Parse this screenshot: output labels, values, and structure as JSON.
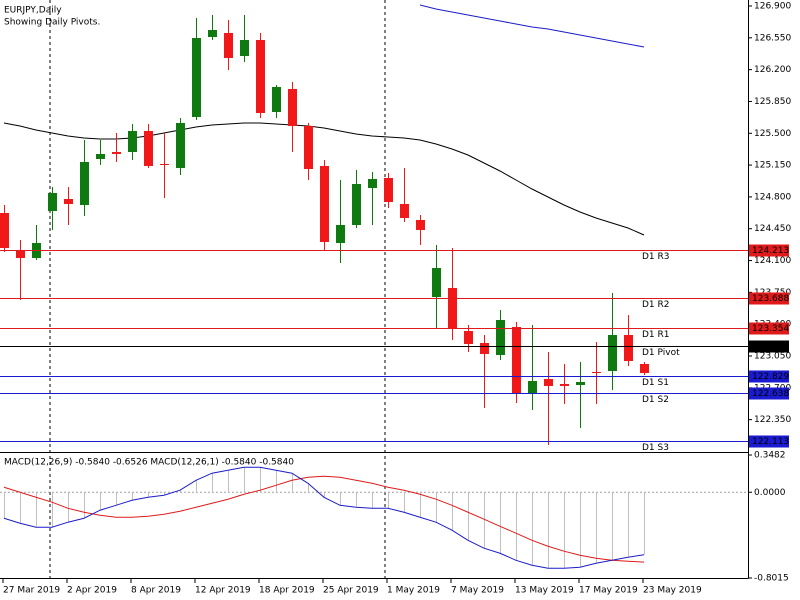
{
  "chart_data": [
    {
      "type": "candlestick",
      "title": "EURJPY,Daily",
      "subtitle": "Showing Daily Pivots.",
      "categories": [
        "27 Mar 2019",
        null,
        null,
        null,
        "2 Apr 2019",
        null,
        null,
        null,
        "8 Apr 2019",
        null,
        null,
        null,
        "12 Apr 2019",
        null,
        null,
        null,
        "18 Apr 2019",
        null,
        null,
        null,
        "25 Apr 2019",
        null,
        null,
        null,
        "1 May 2019",
        null,
        null,
        null,
        "7 May 2019",
        null,
        null,
        null,
        "13 May 2019",
        null,
        null,
        null,
        "17 May 2019",
        null,
        null,
        null,
        "23 May 2019"
      ],
      "open": [
        124.623,
        124.216,
        124.128,
        124.645,
        124.777,
        124.711,
        125.217,
        125.294,
        125.294,
        125.525,
        125.162,
        125.118,
        125.679,
        126.559,
        126.603,
        126.35,
        126.526,
        125.734,
        125.987,
        125.58,
        125.14,
        124.293,
        124.491,
        124.898,
        125.008,
        124.722,
        124.546,
        123.699,
        123.798,
        123.325,
        123.193,
        123.061,
        123.369,
        122.632,
        122.797,
        122.742,
        122.731,
        122.874,
        122.885,
        123.281,
        122.962
      ],
      "high": [
        124.711,
        124.326,
        124.491,
        124.909,
        124.909,
        125.426,
        125.426,
        125.503,
        125.602,
        125.602,
        125.503,
        125.668,
        126.768,
        126.801,
        126.746,
        126.801,
        126.603,
        126.031,
        126.064,
        125.613,
        125.206,
        124.986,
        125.096,
        125.074,
        125.063,
        125.118,
        124.601,
        124.271,
        124.238,
        123.391,
        123.281,
        123.556,
        123.424,
        123.391,
        123.094,
        122.962,
        122.984,
        123.204,
        123.743,
        123.501,
        122.984
      ],
      "low": [
        124.194,
        123.666,
        124.106,
        124.436,
        124.491,
        124.59,
        125.151,
        125.184,
        125.206,
        125.118,
        124.788,
        125.041,
        125.646,
        126.526,
        126.196,
        126.284,
        125.668,
        125.668,
        125.294,
        124.986,
        124.216,
        124.073,
        124.458,
        124.491,
        124.678,
        124.524,
        124.271,
        123.358,
        123.226,
        123.094,
        122.478,
        123.006,
        122.533,
        122.456,
        122.071,
        122.522,
        122.258,
        122.522,
        122.676,
        122.94,
        122.841
      ],
      "close": [
        124.238,
        124.128,
        124.293,
        124.843,
        124.722,
        125.184,
        125.272,
        125.272,
        125.525,
        125.14,
        125.151,
        125.613,
        126.548,
        126.636,
        126.328,
        126.526,
        125.723,
        126.009,
        125.58,
        125.107,
        124.304,
        124.491,
        124.942,
        124.997,
        124.744,
        124.568,
        124.436,
        124.018,
        123.358,
        123.182,
        123.072,
        123.446,
        122.643,
        122.775,
        122.72,
        122.72,
        122.764,
        122.863,
        123.281,
        122.995,
        122.863
      ],
      "up_color": "#0f7a0f",
      "down_color": "#f01818",
      "series": [
        {
          "color": "#000000",
          "values": [
            125.613,
            125.58,
            125.536,
            125.503,
            125.47,
            125.448,
            125.437,
            125.437,
            125.448,
            125.47,
            125.503,
            125.536,
            125.569,
            125.591,
            125.602,
            125.613,
            125.613,
            125.602,
            125.591,
            125.58,
            125.558,
            125.525,
            125.492,
            125.47,
            125.459,
            125.448,
            125.426,
            125.382,
            125.327,
            125.261,
            125.173,
            125.085,
            124.986,
            124.887,
            124.799,
            124.711,
            124.634,
            124.568,
            124.513,
            124.458,
            124.381
          ]
        },
        {
          "color": "#1c1cc8",
          "values": [
            null,
            null,
            null,
            null,
            null,
            null,
            null,
            null,
            null,
            null,
            null,
            null,
            null,
            null,
            null,
            null,
            null,
            null,
            null,
            null,
            null,
            null,
            null,
            null,
            null,
            null,
            126.911,
            126.867,
            126.834,
            126.801,
            126.768,
            126.735,
            126.702,
            126.669,
            126.647,
            126.614,
            126.581,
            126.548,
            126.515,
            126.482,
            126.449
          ]
        }
      ],
      "levels": [
        {
          "name": "D1 R3",
          "value": 124.213,
          "color": "#e01a1a"
        },
        {
          "name": "D1 R2",
          "value": 123.688,
          "color": "#e01a1a"
        },
        {
          "name": "D1 R1",
          "value": 123.354,
          "color": "#e01a1a"
        },
        {
          "name": "D1 Pivot",
          "value": 123.163,
          "color": "#000000"
        },
        {
          "name": "D1 S1",
          "value": 122.829,
          "color": "#1a1ad0"
        },
        {
          "name": "D1 S2",
          "value": 122.638,
          "color": "#1a1ad0"
        },
        {
          "name": "D1 S3",
          "value": 122.113,
          "color": "#1a1ad0"
        }
      ],
      "ylim": [
        122.016,
        126.944
      ],
      "yticks": [
        {
          "value": 126.9,
          "label": "126.900"
        },
        {
          "value": 126.55,
          "label": "126.550"
        },
        {
          "value": 126.2,
          "label": "126.200"
        },
        {
          "value": 125.85,
          "label": "125.850"
        },
        {
          "value": 125.5,
          "label": "125.500"
        },
        {
          "value": 125.15,
          "label": "125.150"
        },
        {
          "value": 124.8,
          "label": "124.800"
        },
        {
          "value": 124.45,
          "label": "124.450"
        },
        {
          "value": 124.1,
          "label": "124.100"
        },
        {
          "value": 123.75,
          "label": "123.750"
        },
        {
          "value": 123.4,
          "label": "123.400"
        },
        {
          "value": 123.05,
          "label": "123.050"
        },
        {
          "value": 122.7,
          "label": "122.700"
        },
        {
          "value": 122.35,
          "label": "122.350"
        }
      ]
    },
    {
      "type": "macd",
      "title": "MACD(12,26,9) -0.5840 -0.6526 MACD(12,26,1) -0.5840 -0.5840",
      "series": [
        {
          "type": "bar",
          "color": "#c0c0c0",
          "values": [
            -0.243,
            -0.29,
            -0.327,
            -0.327,
            -0.28,
            -0.243,
            -0.168,
            -0.122,
            -0.075,
            -0.047,
            -0.028,
            0.019,
            0.112,
            0.178,
            0.206,
            0.234,
            0.234,
            0.206,
            0.178,
            0.084,
            -0.047,
            -0.122,
            -0.14,
            -0.15,
            -0.15,
            -0.187,
            -0.234,
            -0.28,
            -0.355,
            -0.449,
            -0.523,
            -0.57,
            -0.636,
            -0.682,
            -0.71,
            -0.71,
            -0.701,
            -0.664,
            -0.636,
            -0.608,
            -0.584
          ]
        },
        {
          "type": "line",
          "color": "#e01a1a",
          "values": [
            0.047,
            0,
            -0.047,
            -0.093,
            -0.15,
            -0.187,
            -0.215,
            -0.234,
            -0.234,
            -0.224,
            -0.206,
            -0.178,
            -0.14,
            -0.103,
            -0.065,
            -0.019,
            0.019,
            0.065,
            0.112,
            0.14,
            0.15,
            0.14,
            0.112,
            0.084,
            0.047,
            0.019,
            -0.019,
            -0.065,
            -0.122,
            -0.187,
            -0.252,
            -0.318,
            -0.383,
            -0.449,
            -0.505,
            -0.551,
            -0.589,
            -0.617,
            -0.636,
            -0.645,
            -0.6526
          ]
        },
        {
          "type": "line",
          "color": "#1c1cc8",
          "values": [
            -0.243,
            -0.29,
            -0.327,
            -0.327,
            -0.28,
            -0.243,
            -0.168,
            -0.122,
            -0.075,
            -0.047,
            -0.028,
            0.019,
            0.112,
            0.178,
            0.206,
            0.234,
            0.234,
            0.206,
            0.178,
            0.084,
            -0.047,
            -0.122,
            -0.14,
            -0.15,
            -0.15,
            -0.187,
            -0.234,
            -0.28,
            -0.355,
            -0.449,
            -0.523,
            -0.57,
            -0.636,
            -0.682,
            -0.71,
            -0.71,
            -0.701,
            -0.664,
            -0.636,
            -0.608,
            -0.584
          ]
        }
      ],
      "ylim": [
        -0.8015,
        0.3482
      ],
      "yticks": [
        0.3482,
        {
          "value": 0,
          "label": "0.0000"
        },
        -0.8015
      ]
    }
  ]
}
